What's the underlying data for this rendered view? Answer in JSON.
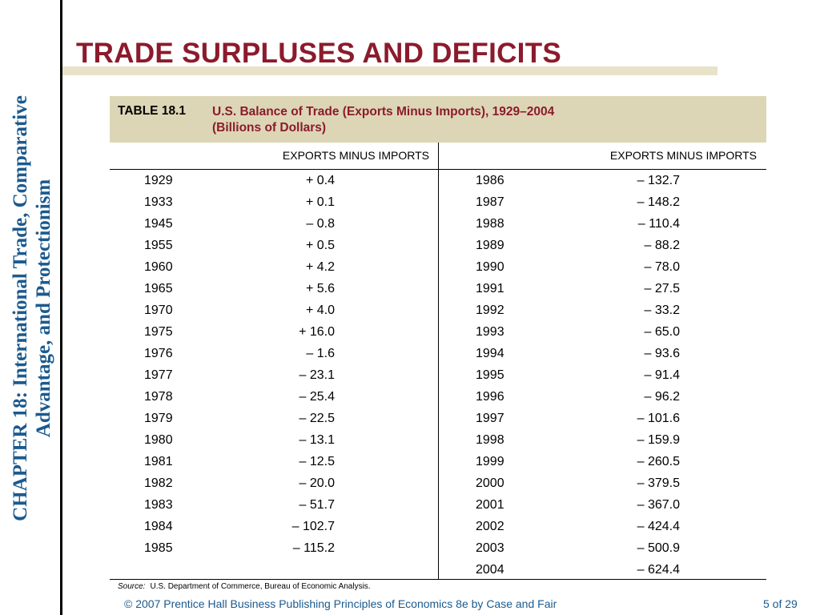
{
  "sidebar": {
    "line1": "CHAPTER 18:  International Trade, Comparative",
    "line2": "Advantage, and Protectionism"
  },
  "title": "TRADE SURPLUSES AND DEFICITS",
  "table": {
    "label": "TABLE 18.1",
    "caption_line1": "U.S. Balance of Trade (Exports Minus Imports), 1929–2004",
    "caption_line2": "(Billions of Dollars)",
    "col_left": "EXPORTS MINUS IMPORTS",
    "col_right": "EXPORTS MINUS IMPORTS",
    "rows": [
      {
        "y1": "1929",
        "v1": "+ 0.4",
        "y2": "1986",
        "v2": "– 132.7"
      },
      {
        "y1": "1933",
        "v1": "+ 0.1",
        "y2": "1987",
        "v2": "– 148.2"
      },
      {
        "y1": "1945",
        "v1": "– 0.8",
        "y2": "1988",
        "v2": "– 110.4"
      },
      {
        "y1": "1955",
        "v1": "+ 0.5",
        "y2": "1989",
        "v2": "– 88.2"
      },
      {
        "y1": "1960",
        "v1": "+ 4.2",
        "y2": "1990",
        "v2": "– 78.0"
      },
      {
        "y1": "1965",
        "v1": "+ 5.6",
        "y2": "1991",
        "v2": "– 27.5"
      },
      {
        "y1": "1970",
        "v1": "+ 4.0",
        "y2": "1992",
        "v2": "– 33.2"
      },
      {
        "y1": "1975",
        "v1": "+ 16.0",
        "y2": "1993",
        "v2": "– 65.0"
      },
      {
        "y1": "1976",
        "v1": "– 1.6",
        "y2": "1994",
        "v2": "– 93.6"
      },
      {
        "y1": "1977",
        "v1": "– 23.1",
        "y2": "1995",
        "v2": "– 91.4"
      },
      {
        "y1": "1978",
        "v1": "– 25.4",
        "y2": "1996",
        "v2": "– 96.2"
      },
      {
        "y1": "1979",
        "v1": "– 22.5",
        "y2": "1997",
        "v2": "– 101.6"
      },
      {
        "y1": "1980",
        "v1": "– 13.1",
        "y2": "1998",
        "v2": "– 159.9"
      },
      {
        "y1": "1981",
        "v1": "– 12.5",
        "y2": "1999",
        "v2": "– 260.5"
      },
      {
        "y1": "1982",
        "v1": "– 20.0",
        "y2": "2000",
        "v2": "– 379.5"
      },
      {
        "y1": "1983",
        "v1": "– 51.7",
        "y2": "2001",
        "v2": "– 367.0"
      },
      {
        "y1": "1984",
        "v1": "– 102.7",
        "y2": "2002",
        "v2": "– 424.4"
      },
      {
        "y1": "1985",
        "v1": "– 115.2",
        "y2": "2003",
        "v2": "– 500.9"
      },
      {
        "y1": "",
        "v1": "",
        "y2": "2004",
        "v2": "– 624.4"
      }
    ],
    "source_label": "Source:",
    "source_text": "U.S. Department of Commerce, Bureau of Economic Analysis."
  },
  "footer": {
    "copyright": "© 2007 Prentice Hall Business Publishing   Principles of Economics 8e by Case and Fair",
    "page": "5 of 29"
  },
  "colors": {
    "title": "#8b1b2c",
    "sidebar": "#1b5a8e",
    "header_bg": "#ddd6b6",
    "title_rule": "#e8e2c9"
  }
}
